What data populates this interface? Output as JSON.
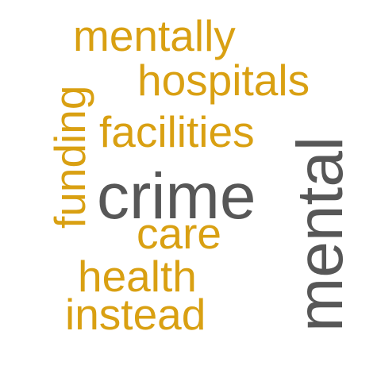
{
  "colors": {
    "background": "#ffffff",
    "primary": "#575757",
    "secondary": "#D9A012"
  },
  "words": [
    {
      "text": "mentally",
      "color": "secondary"
    },
    {
      "text": "hospitals",
      "color": "secondary"
    },
    {
      "text": "facilities",
      "color": "secondary"
    },
    {
      "text": "funding",
      "color": "secondary"
    },
    {
      "text": "crime",
      "color": "primary"
    },
    {
      "text": "mental",
      "color": "primary"
    },
    {
      "text": "care",
      "color": "secondary"
    },
    {
      "text": "health",
      "color": "secondary"
    },
    {
      "text": "instead",
      "color": "secondary"
    }
  ]
}
